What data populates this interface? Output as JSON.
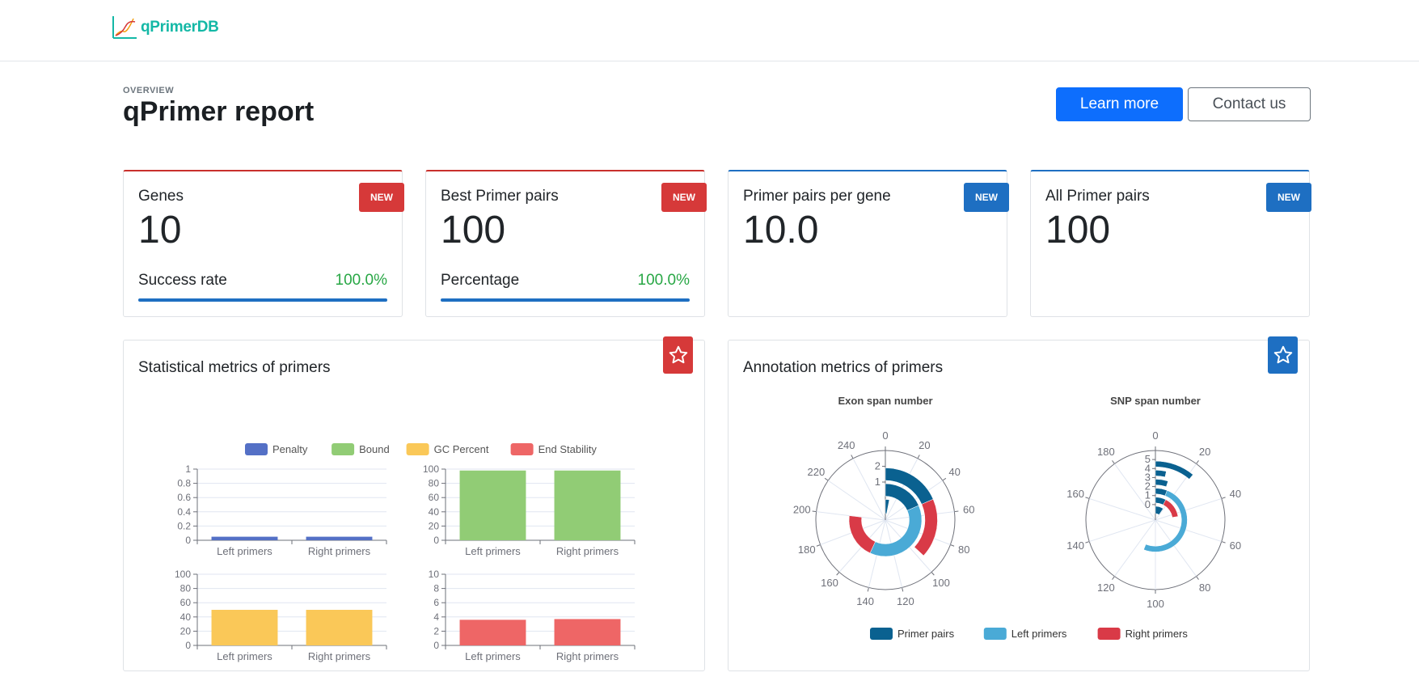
{
  "app": {
    "logo_text": "qPrimerDB"
  },
  "header": {
    "overline": "OVERVIEW",
    "title": "qPrimer report",
    "learn_more": "Learn more",
    "contact": "Contact us"
  },
  "stats": [
    {
      "label": "Genes",
      "value": "10",
      "badge": "NEW",
      "sub_label": "Success rate",
      "sub_value": "100.0%",
      "progress": 1.0,
      "accent": "#d63939"
    },
    {
      "label": "Best Primer pairs",
      "value": "100",
      "badge": "NEW",
      "sub_label": "Percentage",
      "sub_value": "100.0%",
      "progress": 1.0,
      "accent": "#d63939"
    },
    {
      "label": "Primer pairs per gene",
      "value": "10.0",
      "badge": "NEW",
      "accent": "#1e6fc2"
    },
    {
      "label": "All Primer pairs",
      "value": "100",
      "badge": "NEW",
      "accent": "#1e6fc2"
    }
  ],
  "stat_panel": {
    "title": "Statistical metrics of primers"
  },
  "annot_panel": {
    "title": "Annotation metrics of primers"
  },
  "colors": {
    "penalty": "#5470c6",
    "bound": "#91cc75",
    "gc": "#fac858",
    "end": "#ee6666",
    "pairs": "#0a6190",
    "left": "#4aaad6",
    "right": "#d93a47"
  },
  "chart_data": [
    {
      "type": "bar",
      "title": "",
      "categories": [
        "Left primers",
        "Right primers"
      ],
      "series": [
        {
          "name": "Penalty",
          "values": [
            0.05,
            0.05
          ]
        }
      ],
      "ylim": [
        0,
        1
      ],
      "yticks": [
        "1",
        "0.8",
        "0.6",
        "0.4",
        "0.2",
        "0"
      ]
    },
    {
      "type": "bar",
      "title": "",
      "categories": [
        "Left primers",
        "Right primers"
      ],
      "series": [
        {
          "name": "Bound",
          "values": [
            98,
            98
          ]
        }
      ],
      "ylim": [
        0,
        100
      ],
      "yticks": [
        "100",
        "80",
        "60",
        "40",
        "20",
        "0"
      ]
    },
    {
      "type": "bar",
      "title": "",
      "categories": [
        "Left primers",
        "Right primers"
      ],
      "series": [
        {
          "name": "GC Percent",
          "values": [
            50,
            50
          ]
        }
      ],
      "ylim": [
        0,
        100
      ],
      "yticks": [
        "100",
        "80",
        "60",
        "40",
        "20",
        "0"
      ]
    },
    {
      "type": "bar",
      "title": "",
      "categories": [
        "Left primers",
        "Right primers"
      ],
      "series": [
        {
          "name": "End Stability",
          "values": [
            3.6,
            3.7
          ]
        }
      ],
      "ylim": [
        0,
        10
      ],
      "yticks": [
        "10",
        "8",
        "6",
        "4",
        "2",
        "0"
      ]
    },
    {
      "type": "polar-bar",
      "title": "Exon span number",
      "angle_ticks": [
        "0",
        "20",
        "40",
        "60",
        "80",
        "100",
        "120",
        "140",
        "160",
        "180",
        "200",
        "220",
        "240"
      ],
      "angle_max": 260,
      "radial_ticks": [
        "1",
        "2"
      ],
      "categories": [
        "0",
        "1",
        "2"
      ],
      "series": [
        {
          "name": "Primer pairs",
          "values": [
            8,
            48,
            48
          ]
        },
        {
          "name": "Left primers",
          "values": [
            0,
            100,
            0
          ]
        },
        {
          "name": "Right primers",
          "values": [
            0,
            52,
            48
          ]
        }
      ]
    },
    {
      "type": "polar-bar",
      "title": "SNP span number",
      "angle_ticks": [
        "0",
        "20",
        "40",
        "60",
        "80",
        "100",
        "120",
        "140",
        "160",
        "180"
      ],
      "angle_max": 200,
      "radial_ticks": [
        "0",
        "1",
        "2",
        "3",
        "4",
        "5"
      ],
      "categories": [
        "0",
        "1",
        "2",
        "3",
        "4",
        "5"
      ],
      "series": [
        {
          "name": "Primer pairs",
          "values": [
            19,
            15,
            12,
            10,
            7,
            22
          ]
        },
        {
          "name": "Left primers",
          "values": [
            0,
            0,
            100,
            0,
            0,
            0
          ]
        },
        {
          "name": "Right primers",
          "values": [
            0,
            30,
            0,
            0,
            0,
            0
          ]
        }
      ]
    }
  ],
  "legend_stat": [
    "Penalty",
    "Bound",
    "GC Percent",
    "End Stability"
  ],
  "legend_annot": [
    "Primer pairs",
    "Left primers",
    "Right primers"
  ]
}
